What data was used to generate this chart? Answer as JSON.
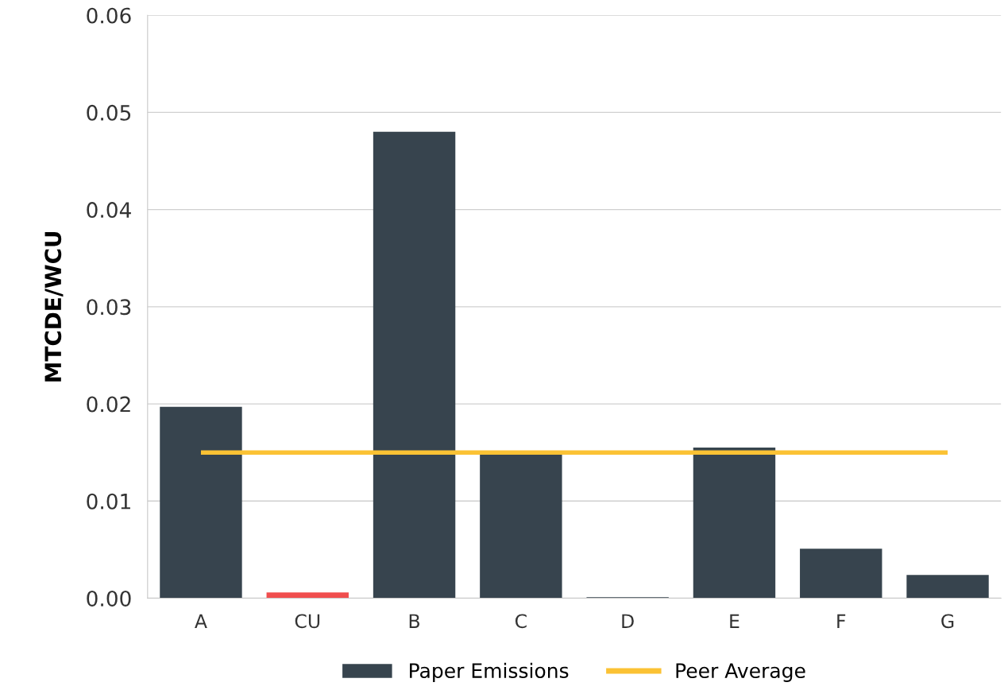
{
  "chart_data": {
    "type": "bar",
    "ylabel": "MTCDE/WCU",
    "categories": [
      "A",
      "CU",
      "B",
      "C",
      "D",
      "E",
      "F",
      "G"
    ],
    "series": [
      {
        "name": "Paper Emissions",
        "color": "#37444e",
        "colors": [
          "#37444e",
          "#f04e4e",
          "#37444e",
          "#37444e",
          "#37444e",
          "#37444e",
          "#37444e",
          "#37444e"
        ],
        "values": [
          0.0197,
          0.0006,
          0.048,
          0.015,
          0.0001,
          0.0155,
          0.0051,
          0.0024
        ]
      },
      {
        "name": "Peer Average",
        "type": "line",
        "color": "#fbc234",
        "values": [
          0.015,
          0.015,
          0.015,
          0.015,
          0.015,
          0.015,
          0.015,
          0.015
        ]
      }
    ],
    "ylim": [
      0,
      0.06
    ],
    "yticks": [
      {
        "value": 0,
        "label": "0.00"
      },
      {
        "value": 0.01,
        "label": "0.01"
      },
      {
        "value": 0.02,
        "label": "0.02"
      },
      {
        "value": 0.03,
        "label": "0.03"
      },
      {
        "value": 0.04,
        "label": "0.04"
      },
      {
        "value": 0.05,
        "label": "0.05"
      },
      {
        "value": 0.06,
        "label": "0.06"
      }
    ],
    "grid": "y",
    "legend": "bottom"
  }
}
